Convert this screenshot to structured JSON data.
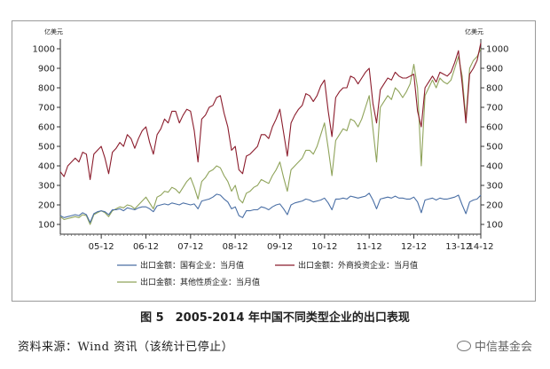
{
  "chart_data": {
    "type": "line",
    "title": "",
    "unit_left": "亿美元",
    "unit_right": "亿美元",
    "ylim": [
      50,
      1050
    ],
    "yticks": [
      100,
      200,
      300,
      400,
      500,
      600,
      700,
      800,
      900,
      1000
    ],
    "xlim": [
      "2005-01",
      "2014-06"
    ],
    "xticks": [
      "05-12",
      "06-12",
      "07-12",
      "08-12",
      "09-12",
      "10-12",
      "11-12",
      "12-12",
      "13-12",
      "14-12"
    ],
    "xtick_dates": [
      "2005-12",
      "2006-12",
      "2007-12",
      "2008-12",
      "2009-12",
      "2010-12",
      "2011-12",
      "2012-12",
      "2013-12",
      "2014-12"
    ],
    "grid": false,
    "legend_position": "bottom",
    "x": [
      "2005-01",
      "2005-02",
      "2005-03",
      "2005-04",
      "2005-05",
      "2005-06",
      "2005-07",
      "2005-08",
      "2005-09",
      "2005-10",
      "2005-11",
      "2005-12",
      "2006-01",
      "2006-02",
      "2006-03",
      "2006-04",
      "2006-05",
      "2006-06",
      "2006-07",
      "2006-08",
      "2006-09",
      "2006-10",
      "2006-11",
      "2006-12",
      "2007-01",
      "2007-02",
      "2007-03",
      "2007-04",
      "2007-05",
      "2007-06",
      "2007-07",
      "2007-08",
      "2007-09",
      "2007-10",
      "2007-11",
      "2007-12",
      "2008-01",
      "2008-02",
      "2008-03",
      "2008-04",
      "2008-05",
      "2008-06",
      "2008-07",
      "2008-08",
      "2008-09",
      "2008-10",
      "2008-11",
      "2008-12",
      "2009-01",
      "2009-02",
      "2009-03",
      "2009-04",
      "2009-05",
      "2009-06",
      "2009-07",
      "2009-08",
      "2009-09",
      "2009-10",
      "2009-11",
      "2009-12",
      "2010-01",
      "2010-02",
      "2010-03",
      "2010-04",
      "2010-05",
      "2010-06",
      "2010-07",
      "2010-08",
      "2010-09",
      "2010-10",
      "2010-11",
      "2010-12",
      "2011-01",
      "2011-02",
      "2011-03",
      "2011-04",
      "2011-05",
      "2011-06",
      "2011-07",
      "2011-08",
      "2011-09",
      "2011-10",
      "2011-11",
      "2011-12",
      "2012-01",
      "2012-02",
      "2012-03",
      "2012-04",
      "2012-05",
      "2012-06",
      "2012-07",
      "2012-08",
      "2012-09",
      "2012-10",
      "2012-11",
      "2012-12",
      "2013-01",
      "2013-02",
      "2013-03",
      "2013-04",
      "2013-05",
      "2013-06",
      "2013-07",
      "2013-08",
      "2013-09",
      "2013-10",
      "2013-11",
      "2013-12",
      "2014-01",
      "2014-02",
      "2014-03",
      "2014-04",
      "2014-05",
      "2014-06"
    ],
    "series": [
      {
        "name": "出口金额：国有企业：当月值",
        "color": "#4a6fa5",
        "values": [
          145,
          135,
          140,
          145,
          150,
          145,
          160,
          150,
          110,
          155,
          165,
          170,
          165,
          150,
          175,
          175,
          180,
          170,
          185,
          180,
          175,
          185,
          190,
          190,
          180,
          165,
          195,
          200,
          205,
          200,
          210,
          205,
          200,
          210,
          205,
          200,
          205,
          180,
          220,
          225,
          230,
          240,
          255,
          250,
          230,
          215,
          180,
          190,
          145,
          135,
          170,
          170,
          175,
          175,
          190,
          185,
          175,
          190,
          200,
          205,
          180,
          150,
          200,
          210,
          215,
          220,
          230,
          225,
          215,
          220,
          225,
          235,
          210,
          175,
          230,
          230,
          235,
          230,
          245,
          240,
          235,
          240,
          245,
          260,
          225,
          180,
          230,
          235,
          240,
          235,
          245,
          235,
          235,
          230,
          230,
          240,
          215,
          160,
          225,
          230,
          235,
          225,
          235,
          230,
          230,
          235,
          240,
          250,
          200,
          155,
          215,
          225,
          230,
          250
        ]
      },
      {
        "name": "出口金额：外商投资企业：当月值",
        "color": "#8b1c2c",
        "values": [
          370,
          345,
          400,
          420,
          440,
          420,
          470,
          460,
          330,
          460,
          480,
          500,
          440,
          360,
          470,
          490,
          520,
          500,
          560,
          540,
          490,
          540,
          580,
          600,
          520,
          460,
          560,
          590,
          640,
          620,
          680,
          680,
          620,
          660,
          690,
          680,
          580,
          420,
          640,
          660,
          700,
          710,
          750,
          760,
          670,
          600,
          480,
          500,
          380,
          360,
          450,
          460,
          480,
          500,
          560,
          560,
          540,
          600,
          640,
          690,
          570,
          450,
          620,
          660,
          690,
          710,
          770,
          760,
          730,
          760,
          810,
          840,
          680,
          550,
          750,
          780,
          800,
          800,
          860,
          850,
          820,
          850,
          880,
          900,
          720,
          620,
          790,
          820,
          850,
          840,
          880,
          860,
          850,
          850,
          860,
          870,
          680,
          600,
          800,
          830,
          860,
          830,
          880,
          870,
          860,
          880,
          930,
          990,
          820,
          620,
          870,
          900,
          940,
          1030
        ]
      },
      {
        "name": "出口金额：其他性质企业：当月值",
        "color": "#8fa35a",
        "values": [
          140,
          125,
          130,
          135,
          140,
          135,
          150,
          145,
          100,
          150,
          160,
          170,
          160,
          140,
          170,
          180,
          190,
          185,
          200,
          195,
          180,
          200,
          220,
          240,
          210,
          180,
          240,
          250,
          270,
          265,
          290,
          280,
          260,
          290,
          320,
          340,
          290,
          230,
          320,
          340,
          370,
          380,
          400,
          390,
          350,
          320,
          270,
          300,
          230,
          210,
          260,
          270,
          290,
          300,
          330,
          320,
          310,
          350,
          380,
          420,
          340,
          270,
          380,
          400,
          420,
          440,
          480,
          480,
          460,
          500,
          560,
          620,
          490,
          350,
          530,
          560,
          590,
          580,
          640,
          630,
          600,
          640,
          700,
          760,
          590,
          420,
          700,
          730,
          760,
          740,
          800,
          780,
          750,
          780,
          820,
          920,
          800,
          400,
          760,
          800,
          840,
          800,
          850,
          830,
          820,
          840,
          900,
          960,
          860,
          640,
          900,
          940,
          960,
          1000
        ]
      }
    ]
  },
  "caption": "图 5　2005-2014 年中国不同类型企业的出口表现",
  "source": "资料来源：Wind 资讯（该统计已停止）",
  "brand": "中信基金会"
}
